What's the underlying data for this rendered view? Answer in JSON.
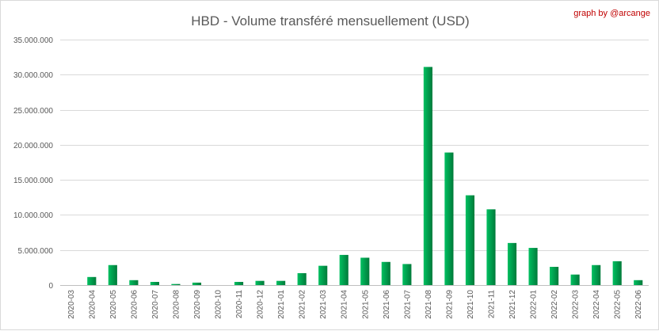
{
  "chart_data": {
    "type": "bar",
    "title": "HBD - Volume transféré mensuellement (USD)",
    "credit": "graph by @arcange",
    "xlabel": "",
    "ylabel": "",
    "ylim": [
      0,
      35000000
    ],
    "yticks": [
      0,
      5000000,
      10000000,
      15000000,
      20000000,
      25000000,
      30000000,
      35000000
    ],
    "ytick_labels": [
      "0",
      "5.000.000",
      "10.000.000",
      "15.000.000",
      "20.000.000",
      "25.000.000",
      "30.000.000",
      "35.000.000"
    ],
    "grid": true,
    "legend": "none",
    "bar_color": "#00a550",
    "categories": [
      "2020-03",
      "2020-04",
      "2020-05",
      "2020-06",
      "2020-07",
      "2020-08",
      "2020-09",
      "2020-10",
      "2020-11",
      "2020-12",
      "2021-01",
      "2021-02",
      "2021-03",
      "2021-04",
      "2021-05",
      "2021-06",
      "2021-07",
      "2021-08",
      "2021-09",
      "2021-10",
      "2021-11",
      "2021-12",
      "2022-01",
      "2022-02",
      "2022-03",
      "2022-04",
      "2022-05",
      "2022-06"
    ],
    "values": [
      0,
      1150000,
      2850000,
      700000,
      450000,
      150000,
      350000,
      0,
      450000,
      600000,
      600000,
      1700000,
      2750000,
      4300000,
      3900000,
      3300000,
      3000000,
      31100000,
      18900000,
      12800000,
      10800000,
      6000000,
      5300000,
      2600000,
      1500000,
      2850000,
      3400000,
      700000
    ]
  }
}
